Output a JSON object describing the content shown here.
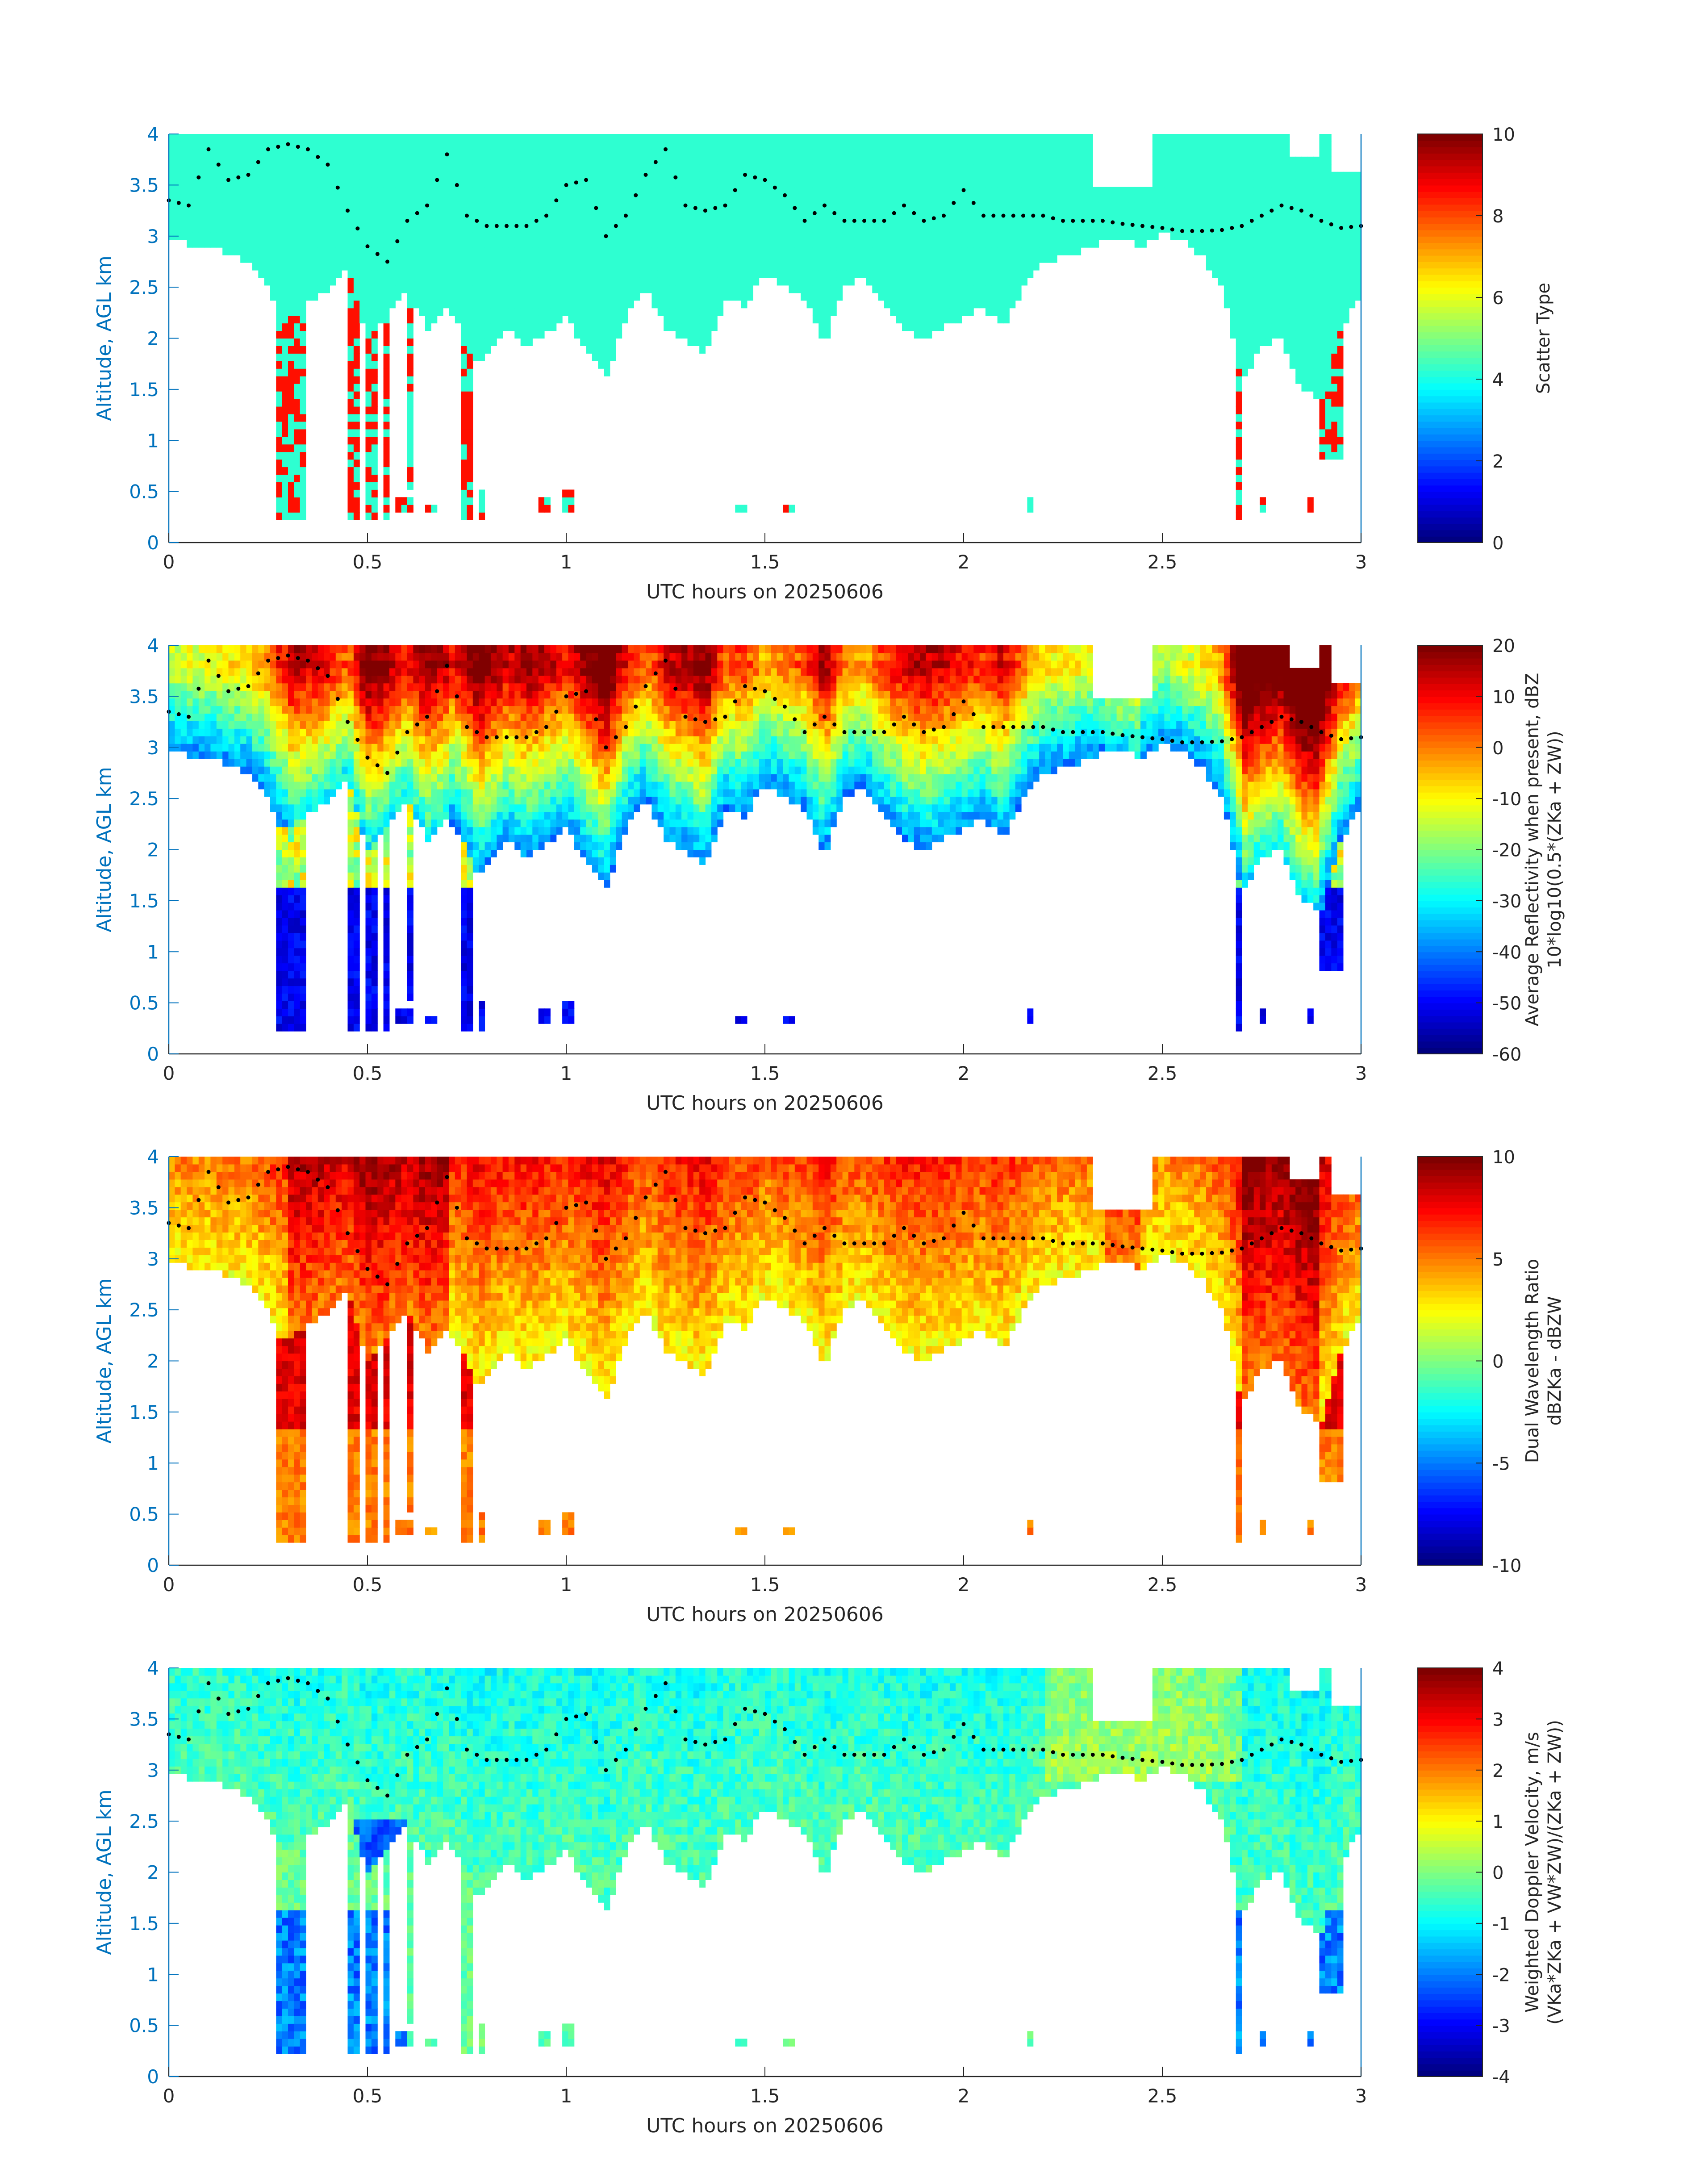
{
  "figure": {
    "xlabel": "UTC hours on 20250606",
    "ylabel": "Altitude, AGL km",
    "xticks": [
      "0",
      "0.5",
      "1",
      "1.5",
      "2",
      "2.5",
      "3"
    ]
  },
  "chart_data": [
    {
      "type": "heatmap",
      "panel": "Scatter Type",
      "title": "",
      "xlabel": "UTC hours on 20250606",
      "ylabel": "Altitude, AGL km",
      "xlim": [
        0,
        3
      ],
      "ylim": [
        0,
        4
      ],
      "xticks": [
        0,
        0.5,
        1,
        1.5,
        2,
        2.5,
        3
      ],
      "yticks": [
        0,
        0.5,
        1,
        1.5,
        2,
        2.5,
        3,
        3.5,
        4
      ],
      "colorbar": {
        "label": [
          "Scatter Type"
        ],
        "min": 0,
        "max": 10,
        "ticks": [
          0,
          2,
          4,
          6,
          8,
          10
        ]
      },
      "colormap": "jet",
      "field": "scatter",
      "dominant_value": 4.2,
      "secondary_value": 8.6,
      "cloud_top_km": 4.0,
      "cloud_base_profile": {
        "x": [
          0,
          0.1,
          0.2,
          0.25,
          0.28,
          0.33,
          0.38,
          0.45,
          0.5,
          0.55,
          0.6,
          0.65,
          0.7,
          0.75,
          0.78,
          0.85,
          0.9,
          1.0,
          1.05,
          1.1,
          1.15,
          1.2,
          1.25,
          1.3,
          1.35,
          1.4,
          1.45,
          1.5,
          1.55,
          1.6,
          1.65,
          1.7,
          1.75,
          1.8,
          1.85,
          1.9,
          1.95,
          2.0,
          2.05,
          2.1,
          2.15,
          2.2,
          2.25,
          2.3,
          2.35,
          2.4,
          2.45,
          2.5,
          2.55,
          2.6,
          2.65,
          2.7,
          2.75,
          2.8,
          2.85,
          2.9,
          2.95,
          3.0
        ],
        "y": [
          2.95,
          2.9,
          2.75,
          2.5,
          2.2,
          2.3,
          2.4,
          2.7,
          2.0,
          2.2,
          2.5,
          2.1,
          2.3,
          2.0,
          1.7,
          2.1,
          1.9,
          2.2,
          1.9,
          1.6,
          2.2,
          2.5,
          2.1,
          2.0,
          1.8,
          2.4,
          2.3,
          2.65,
          2.5,
          2.4,
          1.95,
          2.5,
          2.6,
          2.3,
          2.1,
          2.0,
          2.1,
          2.2,
          2.3,
          2.1,
          2.5,
          2.75,
          2.8,
          2.85,
          2.95,
          3.0,
          2.9,
          3.05,
          2.95,
          2.8,
          2.5,
          1.6,
          1.9,
          2.0,
          1.5,
          1.4,
          2.1,
          2.4
        ]
      },
      "hydrometeor_top_series": {
        "x": [
          0,
          0.05,
          0.1,
          0.15,
          0.2,
          0.25,
          0.3,
          0.35,
          0.4,
          0.45,
          0.5,
          0.55,
          0.6,
          0.65,
          0.7,
          0.75,
          0.8,
          0.85,
          0.9,
          0.95,
          1.0,
          1.05,
          1.1,
          1.15,
          1.2,
          1.25,
          1.3,
          1.35,
          1.4,
          1.45,
          1.5,
          1.55,
          1.6,
          1.65,
          1.7,
          1.75,
          1.8,
          1.85,
          1.9,
          1.95,
          2.0,
          2.05,
          2.1,
          2.15,
          2.2,
          2.25,
          2.3,
          2.35,
          2.4,
          2.45,
          2.5,
          2.55,
          2.6,
          2.65,
          2.7,
          2.75,
          2.8,
          2.85,
          2.9,
          2.95,
          3.0
        ],
        "y": [
          3.35,
          3.3,
          3.85,
          3.55,
          3.6,
          3.85,
          3.9,
          3.85,
          3.7,
          3.25,
          2.9,
          2.75,
          3.15,
          3.3,
          3.8,
          3.2,
          3.1,
          3.1,
          3.1,
          3.2,
          3.5,
          3.55,
          3.0,
          3.2,
          3.6,
          3.85,
          3.3,
          3.25,
          3.3,
          3.6,
          3.55,
          3.4,
          3.15,
          3.3,
          3.15,
          3.15,
          3.15,
          3.3,
          3.15,
          3.2,
          3.45,
          3.2,
          3.2,
          3.2,
          3.2,
          3.15,
          3.15,
          3.15,
          3.12,
          3.1,
          3.08,
          3.05,
          3.05,
          3.06,
          3.1,
          3.2,
          3.3,
          3.25,
          3.15,
          3.08,
          3.1
        ]
      }
    },
    {
      "type": "heatmap",
      "panel": "Average Reflectivity",
      "title": "",
      "xlabel": "UTC hours on 20250606",
      "ylabel": "Altitude, AGL km",
      "xlim": [
        0,
        3
      ],
      "ylim": [
        0,
        4
      ],
      "xticks": [
        0,
        0.5,
        1,
        1.5,
        2,
        2.5,
        3
      ],
      "yticks": [
        0,
        0.5,
        1,
        1.5,
        2,
        2.5,
        3,
        3.5,
        4
      ],
      "colorbar": {
        "label": [
          "Average Reflectivity when present, dBZ",
          "10*log10(0.5*(ZKa + ZW))"
        ],
        "min": -60,
        "max": 20,
        "ticks": [
          -60,
          -50,
          -40,
          -30,
          -20,
          -10,
          0,
          10,
          20
        ]
      },
      "colormap": "jet",
      "field": "reflectivity",
      "core_value": 10,
      "edge_value": -45
    },
    {
      "type": "heatmap",
      "panel": "Dual Wavelength Ratio",
      "title": "",
      "xlabel": "UTC hours on 20250606",
      "ylabel": "Altitude, AGL km",
      "xlim": [
        0,
        3
      ],
      "ylim": [
        0,
        4
      ],
      "xticks": [
        0,
        0.5,
        1,
        1.5,
        2,
        2.5,
        3
      ],
      "yticks": [
        0,
        0.5,
        1,
        1.5,
        2,
        2.5,
        3,
        3.5,
        4
      ],
      "colorbar": {
        "label": [
          "Dual Wavelength Ratio",
          "dBZKa - dBZW"
        ],
        "min": -10,
        "max": 10,
        "ticks": [
          -10,
          -5,
          0,
          5,
          10
        ]
      },
      "colormap": "jet",
      "field": "dwr",
      "core_value": 8.5,
      "edge_value": 3.5
    },
    {
      "type": "heatmap",
      "panel": "Weighted Doppler Velocity",
      "title": "",
      "xlabel": "UTC hours on 20250606",
      "ylabel": "Altitude, AGL km",
      "xlim": [
        0,
        3
      ],
      "ylim": [
        0,
        4
      ],
      "xticks": [
        0,
        0.5,
        1,
        1.5,
        2,
        2.5,
        3
      ],
      "yticks": [
        0,
        0.5,
        1,
        1.5,
        2,
        2.5,
        3,
        3.5,
        4
      ],
      "colorbar": {
        "label": [
          "Weighted Doppler Velocity, m/s",
          "(VKa*ZKa + VW*ZW)/(ZKa + ZW))"
        ],
        "min": -4,
        "max": 4,
        "ticks": [
          -4,
          -3,
          -2,
          -1,
          0,
          1,
          2,
          3,
          4
        ]
      },
      "colormap": "jet",
      "field": "velocity",
      "typical_value": -0.8,
      "fall_streak_value": -3.0
    }
  ],
  "colors": {
    "axis": "#0072BD",
    "text": "#262626",
    "dots": "#000000"
  }
}
